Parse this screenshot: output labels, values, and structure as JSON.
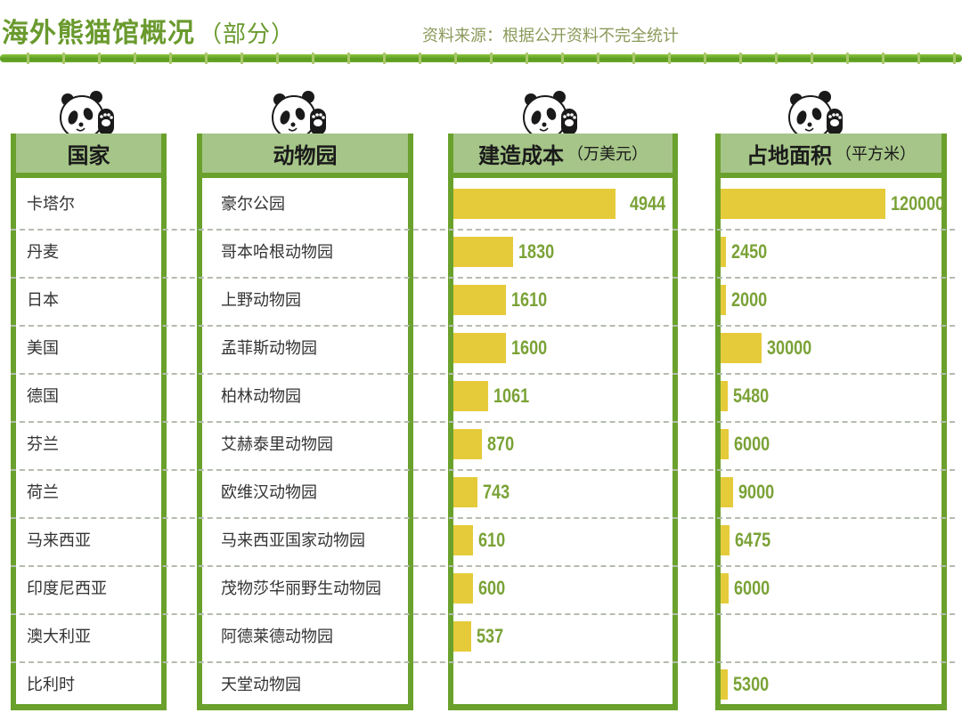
{
  "header": {
    "title": "海外熊猫馆概况",
    "title_suffix": "（部分）",
    "source": "资料来源：根据公开资料不完全统计"
  },
  "columns": {
    "country": {
      "label": "国家"
    },
    "zoo": {
      "label": "动物园"
    },
    "cost": {
      "label": "建造成本",
      "unit": "（万美元）"
    },
    "area": {
      "label": "占地面积",
      "unit": "（平方米）"
    }
  },
  "colors": {
    "bamboo": "#6aa12c",
    "header_bg": "#a6c588",
    "bar": "#e5cb3a",
    "value_text": "#7aa236",
    "title": "#6a9a2e"
  },
  "rows": [
    {
      "country": "卡塔尔",
      "zoo": "豪尔公园",
      "cost": "4944",
      "area": "120000"
    },
    {
      "country": "丹麦",
      "zoo": "哥本哈根动物园",
      "cost": "1830",
      "area": "2450"
    },
    {
      "country": "日本",
      "zoo": "上野动物园",
      "cost": "1610",
      "area": "2000"
    },
    {
      "country": "美国",
      "zoo": "孟菲斯动物园",
      "cost": "1600",
      "area": "30000"
    },
    {
      "country": "德国",
      "zoo": "柏林动物园",
      "cost": "1061",
      "area": "5480"
    },
    {
      "country": "芬兰",
      "zoo": "艾赫泰里动物园",
      "cost": "870",
      "area": "6000"
    },
    {
      "country": "荷兰",
      "zoo": "欧维汉动物园",
      "cost": "743",
      "area": "9000"
    },
    {
      "country": "马来西亚",
      "zoo": "马来西亚国家动物园",
      "cost": "610",
      "area": "6475"
    },
    {
      "country": "印度尼西亚",
      "zoo": "茂物莎华丽野生动物园",
      "cost": "600",
      "area": "6000"
    },
    {
      "country": "澳大利亚",
      "zoo": "阿德莱德动物园",
      "cost": "537",
      "area": null
    },
    {
      "country": "比利时",
      "zoo": "天堂动物园",
      "cost": null,
      "area": "5300"
    }
  ],
  "chart_data": {
    "type": "table",
    "title": "海外熊猫馆概况（部分）",
    "subtitle": "资料来源：根据公开资料不完全统计",
    "columns": [
      "国家",
      "动物园",
      "建造成本（万美元）",
      "占地面积（平方米）"
    ],
    "categories": [
      "卡塔尔",
      "丹麦",
      "日本",
      "美国",
      "德国",
      "芬兰",
      "荷兰",
      "马来西亚",
      "印度尼西亚",
      "澳大利亚",
      "比利时"
    ],
    "zoos": [
      "豪尔公园",
      "哥本哈根动物园",
      "上野动物园",
      "孟菲斯动物园",
      "柏林动物园",
      "艾赫泰里动物园",
      "欧维汉动物园",
      "马来西亚国家动物园",
      "茂物莎华丽野生动物园",
      "阿德莱德动物园",
      "天堂动物园"
    ],
    "series": [
      {
        "name": "建造成本（万美元）",
        "type": "bar",
        "values": [
          4944,
          1830,
          1610,
          1600,
          1061,
          870,
          743,
          610,
          600,
          537,
          null
        ]
      },
      {
        "name": "占地面积（平方米）",
        "type": "bar",
        "values": [
          120000,
          2450,
          2000,
          30000,
          5480,
          6000,
          9000,
          6475,
          6000,
          null,
          5300
        ]
      }
    ],
    "orientation": "horizontal",
    "grid": "dashed row separators",
    "legend": "none"
  }
}
